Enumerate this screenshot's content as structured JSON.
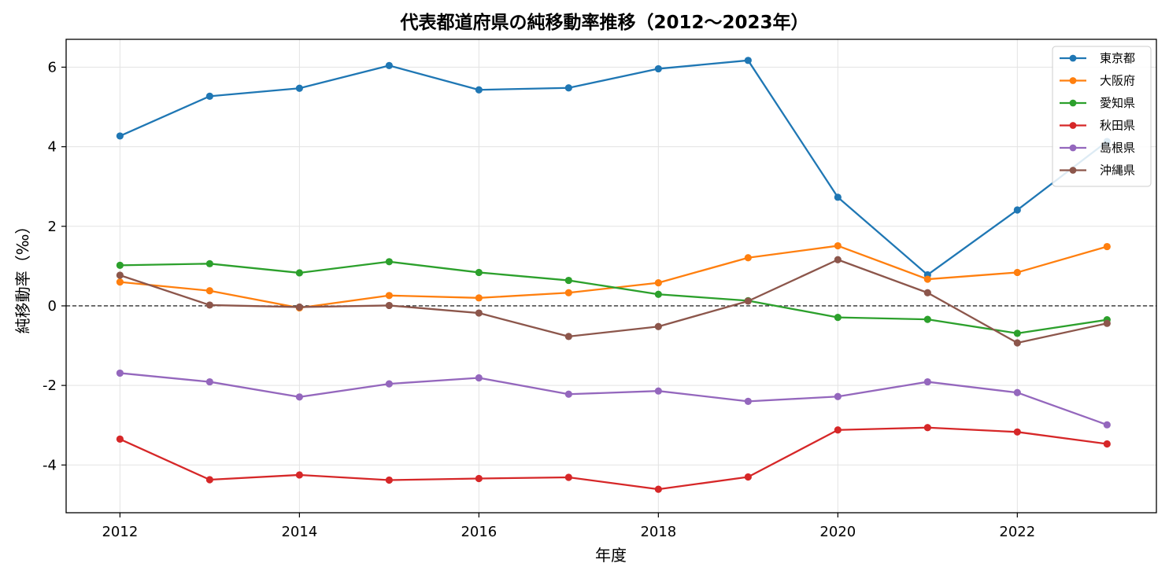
{
  "chart_data": {
    "type": "line",
    "title": "代表都道府県の純移動率推移（2012〜2023年）",
    "xlabel": "年度",
    "ylabel": "純移動率（‰）",
    "x": [
      2012,
      2013,
      2014,
      2015,
      2016,
      2017,
      2018,
      2019,
      2020,
      2021,
      2022,
      2023
    ],
    "xlim": [
      2011.4,
      2023.55
    ],
    "ylim": [
      -5.2,
      6.7
    ],
    "xticks": [
      2012,
      2014,
      2016,
      2018,
      2020,
      2022
    ],
    "yticks": [
      -4,
      -2,
      0,
      2,
      4,
      6
    ],
    "ytick_labels": [
      "-4",
      "-2",
      "0",
      "2",
      "4",
      "6"
    ],
    "grid": true,
    "reference_line": 0,
    "legend_position": "top-right",
    "series": [
      {
        "name": "東京都",
        "color": "#1f77b4",
        "values": [
          4.27,
          5.27,
          5.47,
          6.04,
          5.43,
          5.48,
          5.96,
          6.17,
          2.73,
          0.78,
          2.41,
          4.13
        ]
      },
      {
        "name": "大阪府",
        "color": "#ff7f0e",
        "values": [
          0.6,
          0.38,
          -0.05,
          0.26,
          0.2,
          0.33,
          0.58,
          1.21,
          1.51,
          0.67,
          0.84,
          1.49
        ]
      },
      {
        "name": "愛知県",
        "color": "#2ca02c",
        "values": [
          1.02,
          1.06,
          0.83,
          1.11,
          0.84,
          0.64,
          0.29,
          0.13,
          -0.29,
          -0.34,
          -0.69,
          -0.35
        ]
      },
      {
        "name": "秋田県",
        "color": "#d62728",
        "values": [
          -3.35,
          -4.37,
          -4.25,
          -4.38,
          -4.34,
          -4.31,
          -4.61,
          -4.3,
          -3.12,
          -3.06,
          -3.17,
          -3.47
        ]
      },
      {
        "name": "島根県",
        "color": "#9467bd",
        "values": [
          -1.69,
          -1.91,
          -2.29,
          -1.96,
          -1.81,
          -2.22,
          -2.14,
          -2.4,
          -2.28,
          -1.91,
          -2.18,
          -2.99
        ]
      },
      {
        "name": "沖縄県",
        "color": "#8c564b",
        "values": [
          0.77,
          0.02,
          -0.03,
          0.01,
          -0.18,
          -0.77,
          -0.52,
          0.12,
          1.16,
          0.33,
          -0.93,
          -0.44
        ]
      }
    ]
  }
}
